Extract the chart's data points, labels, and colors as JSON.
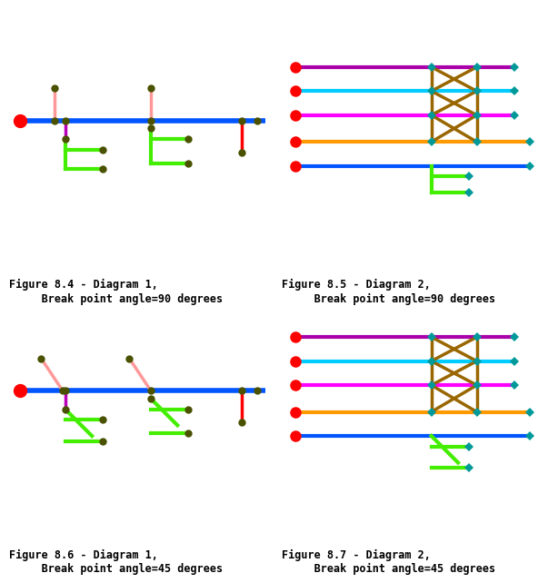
{
  "captions": [
    "Figure 8.4 - Diagram 1,\n     Break point angle=90 degrees",
    "Figure 8.5 - Diagram 2,\n     Break point angle=90 degrees",
    "Figure 8.6 - Diagram 1,\n     Break point angle=45 degrees",
    "Figure 8.7 - Diagram 2,\n     Break point angle=45 degrees"
  ],
  "colors": {
    "blue": "#0055ff",
    "red": "#ff0000",
    "pink": "#ff9999",
    "purple": "#bb00bb",
    "green": "#44ee00",
    "brown": "#996600",
    "magenta": "#ff00ff",
    "cyan": "#00ccff",
    "orange": "#ff9900",
    "violet": "#aa00aa",
    "dark_olive": "#4a5200",
    "teal": "#009999"
  }
}
